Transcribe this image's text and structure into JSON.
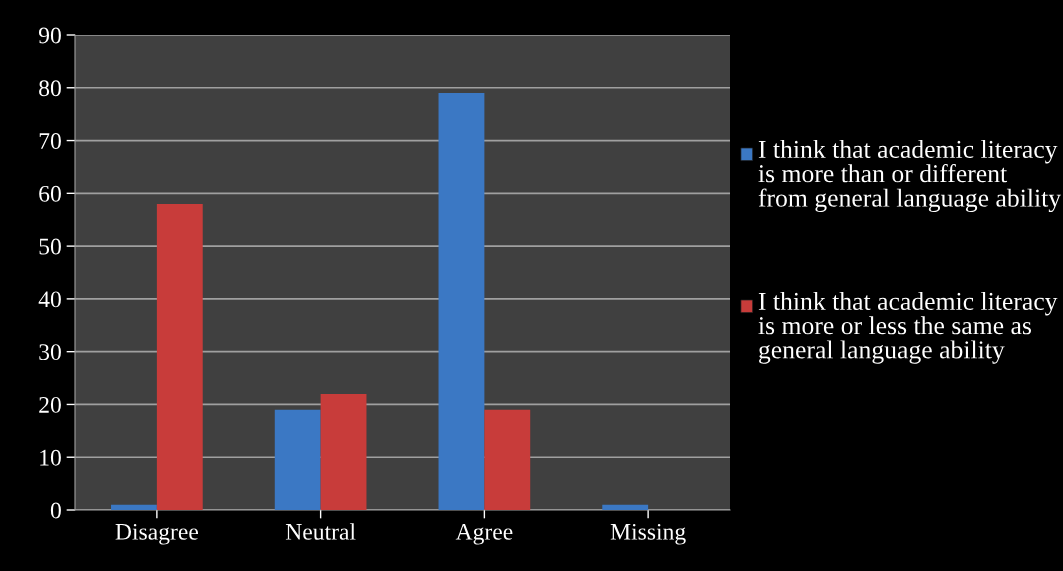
{
  "chart_data": {
    "type": "bar",
    "categories": [
      "Disagree",
      "Neutral",
      "Agree",
      "Missing"
    ],
    "series": [
      {
        "name": "I think that academic literacy is more than or different from general language ability",
        "color": "#3b78c4",
        "values": [
          1,
          19,
          79,
          1
        ]
      },
      {
        "name": "I think that academic literacy is more or less the same as general language ability",
        "color": "#c83c3a",
        "values": [
          58,
          22,
          19,
          0
        ]
      }
    ],
    "ylim": [
      0,
      90
    ],
    "yticks": [
      0,
      10,
      20,
      30,
      40,
      50,
      60,
      70,
      80,
      90
    ],
    "grid": "y",
    "legend": "right"
  }
}
